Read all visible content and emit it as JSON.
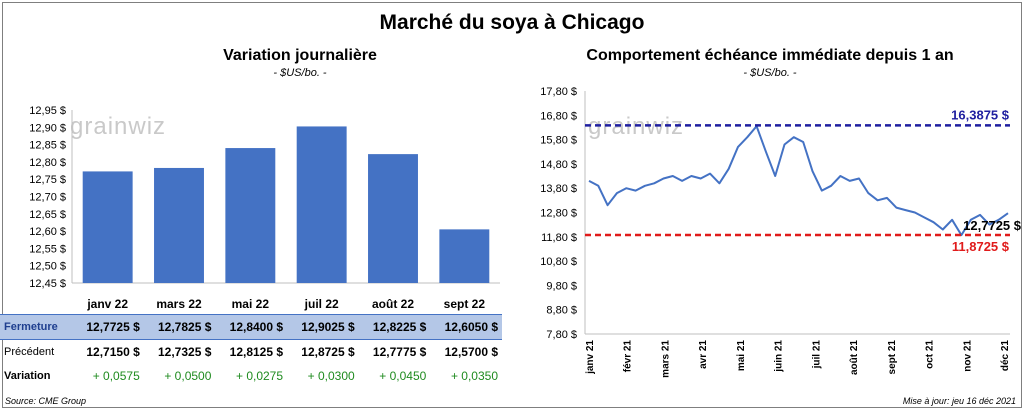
{
  "title": "Marché du soya à Chicago",
  "watermark": "grainwiz",
  "source": "Source: CME Group",
  "updated": "Mise à jour: jeu 16 déc 2021",
  "colors": {
    "bar": "#4472c4",
    "line": "#4472c4",
    "high_line": "#1f1fa0",
    "low_line": "#e01b1b",
    "variation_positive": "#1f8b1f",
    "table_highlight": "#b4c7e7"
  },
  "table": {
    "rows": [
      {
        "label": "Fermeture",
        "values": [
          "12,7725 $",
          "12,7825 $",
          "12,8400 $",
          "12,9025 $",
          "12,8225 $",
          "12,6050 $"
        ]
      },
      {
        "label": "Précédent",
        "values": [
          "12,7150 $",
          "12,7325 $",
          "12,8125 $",
          "12,8725 $",
          "12,7775 $",
          "12,5700 $"
        ]
      },
      {
        "label": "Variation",
        "values": [
          "+ 0,0575",
          "+ 0,0500",
          "+ 0,0275",
          "+ 0,0300",
          "+ 0,0450",
          "+ 0,0350"
        ]
      }
    ]
  },
  "chart_data": [
    {
      "type": "bar",
      "title": "Variation journalière",
      "subtitle": "- $US/bo. -",
      "categories": [
        "janv 22",
        "mars 22",
        "mai 22",
        "juil 22",
        "août 22",
        "sept 22"
      ],
      "values": [
        12.7725,
        12.7825,
        12.84,
        12.9025,
        12.8225,
        12.605
      ],
      "ylim": [
        12.45,
        12.95
      ],
      "yticks": [
        "12,45 $",
        "12,50 $",
        "12,55 $",
        "12,60 $",
        "12,65 $",
        "12,70 $",
        "12,75 $",
        "12,80 $",
        "12,85 $",
        "12,90 $",
        "12,95 $"
      ],
      "grid": false
    },
    {
      "type": "line",
      "title": "Comportement échéance immédiate depuis 1 an",
      "subtitle": "- $US/bo. -",
      "ylim": [
        7.8,
        17.8
      ],
      "yticks": [
        "7,80 $",
        "8,80 $",
        "9,80 $",
        "10,80 $",
        "11,80 $",
        "12,80 $",
        "13,80 $",
        "14,80 $",
        "15,80 $",
        "16,80 $",
        "17,80 $"
      ],
      "xticks": [
        "janv 21",
        "févr 21",
        "mars 21",
        "avr 21",
        "mai 21",
        "juin 21",
        "juil 21",
        "août 21",
        "sept 21",
        "oct 21",
        "nov 21",
        "déc 21"
      ],
      "x": [
        "2021-01",
        "2021-01",
        "2021-01",
        "2021-01",
        "2021-02",
        "2021-02",
        "2021-02",
        "2021-02",
        "2021-03",
        "2021-03",
        "2021-03",
        "2021-03",
        "2021-04",
        "2021-04",
        "2021-04",
        "2021-04",
        "2021-05",
        "2021-05",
        "2021-05",
        "2021-05",
        "2021-06",
        "2021-06",
        "2021-06",
        "2021-06",
        "2021-07",
        "2021-07",
        "2021-07",
        "2021-07",
        "2021-08",
        "2021-08",
        "2021-08",
        "2021-08",
        "2021-09",
        "2021-09",
        "2021-09",
        "2021-09",
        "2021-10",
        "2021-10",
        "2021-10",
        "2021-10",
        "2021-11",
        "2021-11",
        "2021-11",
        "2021-11",
        "2021-12",
        "2021-12"
      ],
      "y": [
        14.1,
        13.9,
        13.1,
        13.6,
        13.8,
        13.7,
        13.9,
        14.0,
        14.2,
        14.3,
        14.1,
        14.3,
        14.2,
        14.4,
        14.0,
        14.6,
        15.5,
        15.9,
        16.35,
        15.3,
        14.3,
        15.6,
        15.9,
        15.7,
        14.5,
        13.7,
        13.9,
        14.3,
        14.1,
        14.2,
        13.6,
        13.3,
        13.4,
        13.0,
        12.9,
        12.8,
        12.6,
        12.4,
        12.1,
        12.5,
        11.87,
        12.5,
        12.7,
        12.3,
        12.5,
        12.7725
      ],
      "series": [
        {
          "values": [
            14.1,
            13.9,
            13.1,
            13.6,
            13.8,
            13.7,
            13.9,
            14.0,
            14.2,
            14.3,
            14.1,
            14.3,
            14.2,
            14.4,
            14.0,
            14.6,
            15.5,
            15.9,
            16.35,
            15.3,
            14.3,
            15.6,
            15.9,
            15.7,
            14.5,
            13.7,
            13.9,
            14.3,
            14.1,
            14.2,
            13.6,
            13.3,
            13.4,
            13.0,
            12.9,
            12.8,
            12.6,
            12.4,
            12.1,
            12.5,
            11.87,
            12.5,
            12.7,
            12.3,
            12.5,
            12.7725
          ]
        }
      ],
      "reference_lines": [
        {
          "value": 16.3875,
          "label": "16,3875 $",
          "color": "#1f1fa0"
        },
        {
          "value": 11.8725,
          "label": "11,8725 $",
          "color": "#e01b1b"
        }
      ],
      "last_value": {
        "value": 12.7725,
        "label": "12,7725 $"
      },
      "grid": false
    }
  ]
}
